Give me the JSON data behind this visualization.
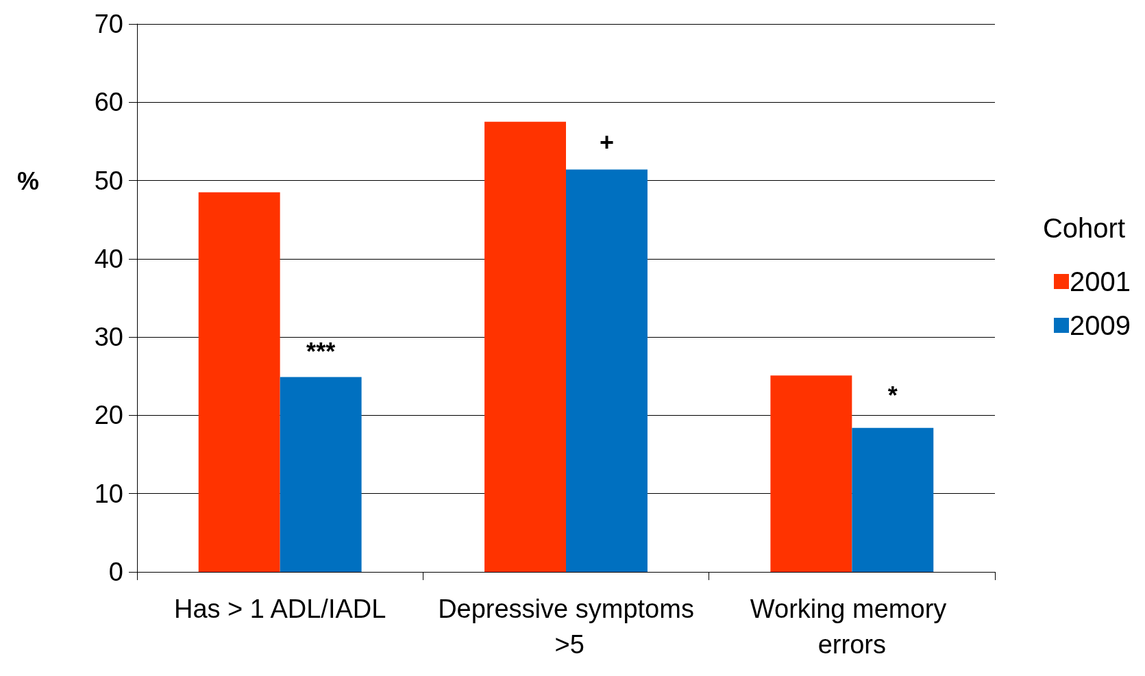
{
  "chart_data": {
    "type": "bar",
    "ylabel": "%",
    "legend_title": "Cohort",
    "legend": "right",
    "categories": [
      "Has > 1 ADL/IADL",
      "Depressive symptoms >5",
      "Working memory errors"
    ],
    "series": [
      {
        "name": "2001",
        "color": "#ff3300",
        "values": [
          48.5,
          57.5,
          25.1
        ]
      },
      {
        "name": "2009",
        "color": "#0070c0",
        "values": [
          24.9,
          51.4,
          18.4
        ]
      }
    ],
    "ylim": [
      0,
      70
    ],
    "yticks": [
      0,
      10,
      20,
      30,
      40,
      50,
      60,
      70
    ],
    "grid": "y",
    "annotations": [
      {
        "text": "***",
        "x": "Has > 1 ADL/IADL",
        "y": 28.1
      },
      {
        "text": "+",
        "x": "Depressive symptoms >5",
        "y": 54.9
      },
      {
        "text": "*",
        "x": "Working memory errors",
        "y": 22.5
      }
    ]
  }
}
